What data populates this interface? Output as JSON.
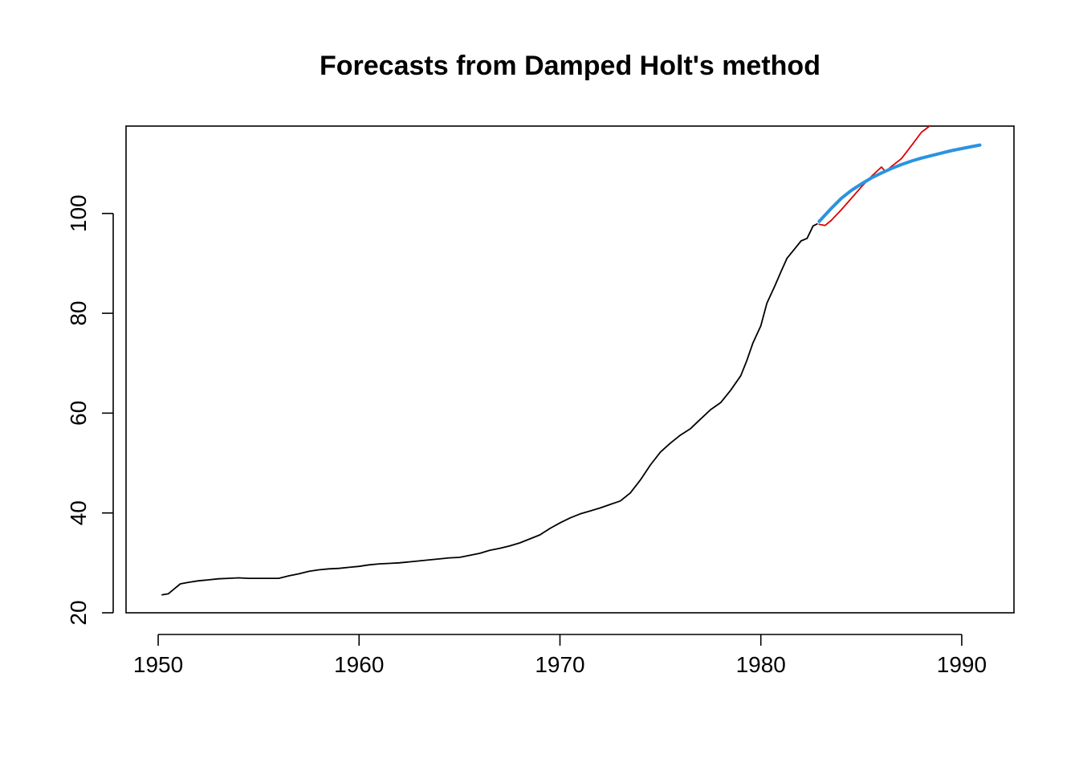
{
  "chart_data": {
    "type": "line",
    "title": "Forecasts from Damped Holt's method",
    "xlabel": "",
    "ylabel": "",
    "xlim": [
      1948.4,
      1992.6
    ],
    "ylim": [
      20,
      117.5
    ],
    "x_ticks": [
      1950,
      1960,
      1970,
      1980,
      1990
    ],
    "y_ticks": [
      20,
      40,
      60,
      80,
      100
    ],
    "grid": false,
    "legend": "none",
    "series": [
      {
        "role": "observed",
        "color": "#000000",
        "points": [
          [
            1950.2,
            23.6
          ],
          [
            1950.5,
            23.8
          ],
          [
            1950.8,
            24.8
          ],
          [
            1951.1,
            25.8
          ],
          [
            1951.5,
            26.1
          ],
          [
            1952.0,
            26.4
          ],
          [
            1952.5,
            26.6
          ],
          [
            1953.0,
            26.8
          ],
          [
            1953.5,
            26.9
          ],
          [
            1954.0,
            27.0
          ],
          [
            1954.5,
            26.9
          ],
          [
            1955.0,
            26.9
          ],
          [
            1955.5,
            26.9
          ],
          [
            1956.0,
            26.9
          ],
          [
            1956.5,
            27.4
          ],
          [
            1957.0,
            27.8
          ],
          [
            1957.5,
            28.3
          ],
          [
            1958.0,
            28.6
          ],
          [
            1958.5,
            28.8
          ],
          [
            1959.0,
            28.9
          ],
          [
            1959.5,
            29.1
          ],
          [
            1960.0,
            29.3
          ],
          [
            1960.5,
            29.6
          ],
          [
            1961.0,
            29.8
          ],
          [
            1961.5,
            29.9
          ],
          [
            1962.0,
            30.0
          ],
          [
            1962.5,
            30.2
          ],
          [
            1963.0,
            30.4
          ],
          [
            1963.5,
            30.6
          ],
          [
            1964.0,
            30.8
          ],
          [
            1964.5,
            31.0
          ],
          [
            1965.0,
            31.1
          ],
          [
            1965.5,
            31.5
          ],
          [
            1966.0,
            31.9
          ],
          [
            1966.5,
            32.5
          ],
          [
            1967.0,
            32.9
          ],
          [
            1967.5,
            33.4
          ],
          [
            1968.0,
            34.0
          ],
          [
            1968.5,
            34.8
          ],
          [
            1969.0,
            35.6
          ],
          [
            1969.5,
            36.9
          ],
          [
            1970.0,
            38.0
          ],
          [
            1970.5,
            39.0
          ],
          [
            1971.0,
            39.8
          ],
          [
            1971.5,
            40.4
          ],
          [
            1972.0,
            41.0
          ],
          [
            1972.5,
            41.7
          ],
          [
            1973.0,
            42.4
          ],
          [
            1973.5,
            44.0
          ],
          [
            1974.0,
            46.6
          ],
          [
            1974.5,
            49.6
          ],
          [
            1975.0,
            52.2
          ],
          [
            1975.5,
            54.0
          ],
          [
            1976.0,
            55.6
          ],
          [
            1976.5,
            56.9
          ],
          [
            1977.0,
            58.8
          ],
          [
            1977.5,
            60.7
          ],
          [
            1978.0,
            62.1
          ],
          [
            1978.5,
            64.6
          ],
          [
            1979.0,
            67.5
          ],
          [
            1979.3,
            70.5
          ],
          [
            1979.6,
            74.0
          ],
          [
            1980.0,
            77.5
          ],
          [
            1980.3,
            82.0
          ],
          [
            1980.7,
            85.5
          ],
          [
            1981.0,
            88.3
          ],
          [
            1981.3,
            91.0
          ],
          [
            1981.7,
            93.0
          ],
          [
            1982.0,
            94.5
          ],
          [
            1982.3,
            95.0
          ],
          [
            1982.6,
            97.5
          ],
          [
            1982.8,
            97.9
          ]
        ]
      },
      {
        "role": "actual",
        "color": "#dd0000",
        "points": [
          [
            1982.9,
            97.8
          ],
          [
            1983.2,
            97.6
          ],
          [
            1983.5,
            98.6
          ],
          [
            1984.0,
            100.7
          ],
          [
            1984.5,
            103.0
          ],
          [
            1985.0,
            105.3
          ],
          [
            1985.5,
            107.4
          ],
          [
            1986.0,
            109.3
          ],
          [
            1986.2,
            108.4
          ],
          [
            1986.5,
            109.4
          ],
          [
            1987.0,
            111.0
          ],
          [
            1987.5,
            113.6
          ],
          [
            1988.0,
            116.3
          ],
          [
            1988.4,
            117.5
          ]
        ]
      },
      {
        "role": "forecast",
        "color": "#2b93e0",
        "points": [
          [
            1982.9,
            98.4
          ],
          [
            1983.5,
            101.0
          ],
          [
            1984.0,
            103.0
          ],
          [
            1984.5,
            104.6
          ],
          [
            1985.0,
            105.9
          ],
          [
            1985.5,
            107.1
          ],
          [
            1986.0,
            108.1
          ],
          [
            1986.5,
            109.0
          ],
          [
            1987.0,
            109.8
          ],
          [
            1987.5,
            110.5
          ],
          [
            1988.0,
            111.1
          ],
          [
            1988.5,
            111.6
          ],
          [
            1989.0,
            112.1
          ],
          [
            1989.5,
            112.6
          ],
          [
            1990.0,
            113.0
          ],
          [
            1990.5,
            113.4
          ],
          [
            1990.9,
            113.7
          ]
        ]
      }
    ]
  }
}
